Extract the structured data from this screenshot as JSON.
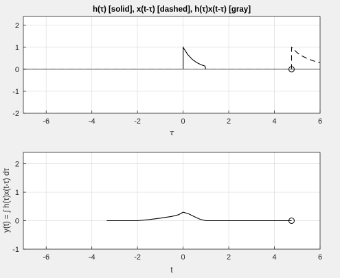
{
  "chart_data": [
    {
      "type": "line",
      "title": "h(τ) [solid], x(t-τ) [dashed], h(τ)x(t-τ) [gray]",
      "xlabel": "τ",
      "ylabel": "",
      "xlim": [
        -7,
        6
      ],
      "ylim": [
        -2,
        2.4
      ],
      "xticks": [
        "-6",
        "-4",
        "-2",
        "0",
        "2",
        "4",
        "6"
      ],
      "yticks": [
        "-2",
        "-1",
        "0",
        "1",
        "2"
      ],
      "grid": true,
      "series": [
        {
          "style": "solid",
          "color": "#000000",
          "x": [
            -7,
            0,
            0,
            0.2,
            0.4,
            0.6,
            0.8,
            0.95,
            1,
            6
          ],
          "y": [
            0,
            0,
            1,
            0.67,
            0.45,
            0.3,
            0.2,
            0.15,
            0,
            0
          ]
        },
        {
          "style": "dashed",
          "color": "#000000",
          "x": [
            -7,
            4.75,
            4.75,
            5.0,
            5.25,
            5.5,
            5.75,
            6.0
          ],
          "y": [
            0,
            0,
            1,
            0.75,
            0.58,
            0.46,
            0.37,
            0.3
          ]
        },
        {
          "style": "solid",
          "color": "#808080",
          "x": [
            -7,
            6
          ],
          "y": [
            0,
            0
          ]
        }
      ],
      "markers": [
        {
          "x": 4.75,
          "y": 0,
          "shape": "circle"
        }
      ]
    },
    {
      "type": "line",
      "title": "",
      "xlabel": "t",
      "ylabel": "y(t) = ∫ h(τ)x(t-τ) dτ",
      "xlim": [
        -7,
        6
      ],
      "ylim": [
        -1,
        2.4
      ],
      "xticks": [
        "-6",
        "-4",
        "-2",
        "0",
        "2",
        "4",
        "6"
      ],
      "yticks": [
        "-1",
        "0",
        "1",
        "2"
      ],
      "grid": true,
      "series": [
        {
          "style": "solid",
          "color": "#000000",
          "x": [
            -3.35,
            -2,
            -1.5,
            -1.0,
            -0.5,
            -0.2,
            0,
            0.25,
            0.5,
            0.75,
            1,
            4.75
          ],
          "y": [
            0,
            0,
            0.04,
            0.09,
            0.15,
            0.21,
            0.3,
            0.24,
            0.14,
            0.05,
            0,
            0
          ]
        }
      ],
      "markers": [
        {
          "x": 4.75,
          "y": 0,
          "shape": "circle"
        }
      ]
    }
  ]
}
